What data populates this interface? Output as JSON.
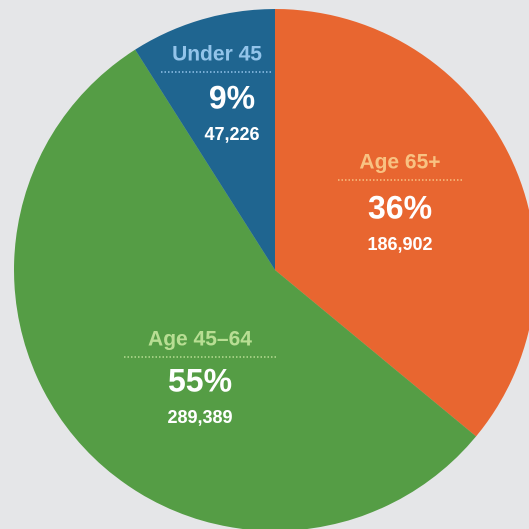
{
  "chart_data": {
    "type": "pie",
    "categories": [
      "Age 65+",
      "Age 45–64",
      "Under 45"
    ],
    "values": [
      36,
      55,
      9
    ],
    "value_labels": [
      "36%",
      "55%",
      "9%"
    ],
    "counts": [
      186902,
      289389,
      47226
    ],
    "count_labels": [
      "186,902",
      "289,389",
      "47,226"
    ],
    "colors": [
      "#e86630",
      "#559d45",
      "#1f6590"
    ],
    "label_colors": [
      "#f8c282",
      "#b8de93",
      "#93c4ea"
    ]
  }
}
